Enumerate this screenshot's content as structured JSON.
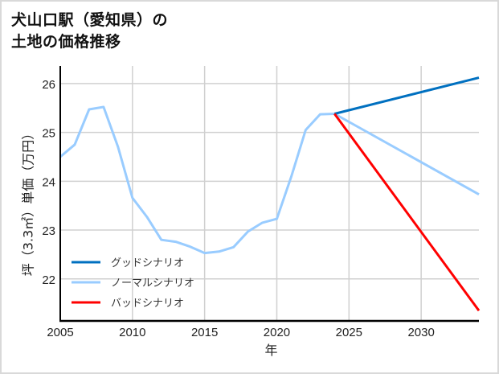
{
  "title": {
    "line1": "犬山口駅（愛知県）の",
    "line2": "土地の価格推移"
  },
  "chart_data": {
    "type": "line",
    "title": "犬山口駅（愛知県）の土地の価格推移",
    "xlabel": "年",
    "ylabel": "坪（3.3㎡）単価（万円）",
    "xlim": [
      2005,
      2034
    ],
    "ylim": [
      21.14,
      26.36
    ],
    "x_ticks": [
      2005,
      2010,
      2015,
      2020,
      2025,
      2030
    ],
    "y_ticks": [
      22,
      23,
      24,
      25,
      26
    ],
    "grid": true,
    "legend_position": "lower left",
    "historical": {
      "name": "ノーマルシナリオ",
      "x": [
        2005,
        2006,
        2007,
        2008,
        2009,
        2010,
        2011,
        2012,
        2013,
        2014,
        2015,
        2016,
        2017,
        2018,
        2019,
        2020,
        2021,
        2022,
        2023,
        2024
      ],
      "values": [
        24.5,
        24.75,
        25.47,
        25.52,
        24.7,
        23.66,
        23.27,
        22.8,
        22.76,
        22.66,
        22.53,
        22.56,
        22.65,
        22.97,
        23.15,
        23.23,
        24.09,
        25.05,
        25.37,
        25.38
      ]
    },
    "series": [
      {
        "name": "グッドシナリオ",
        "color": "#0070c0",
        "x": [
          2024,
          2034
        ],
        "values": [
          25.38,
          26.12
        ]
      },
      {
        "name": "ノーマルシナリオ",
        "color": "#99ccff",
        "x": [
          2024,
          2034
        ],
        "values": [
          25.38,
          23.73
        ]
      },
      {
        "name": "バッドシナリオ",
        "color": "#ff0000",
        "x": [
          2024,
          2034
        ],
        "values": [
          25.38,
          21.35
        ]
      }
    ]
  },
  "legend": [
    {
      "label": "グッドシナリオ",
      "color": "#0070c0"
    },
    {
      "label": "ノーマルシナリオ",
      "color": "#99ccff"
    },
    {
      "label": "バッドシナリオ",
      "color": "#ff0000"
    }
  ],
  "axes": {
    "x_label": "年",
    "y_label": "坪（3.3㎡）単価（万円）",
    "x_ticks": [
      "2005",
      "2010",
      "2015",
      "2020",
      "2025",
      "2030"
    ],
    "y_ticks": [
      "26",
      "25",
      "24",
      "23",
      "22"
    ]
  },
  "colors": {
    "grid": "#d0d0d0",
    "axis": "#000000",
    "border": "#d9d9d9"
  }
}
